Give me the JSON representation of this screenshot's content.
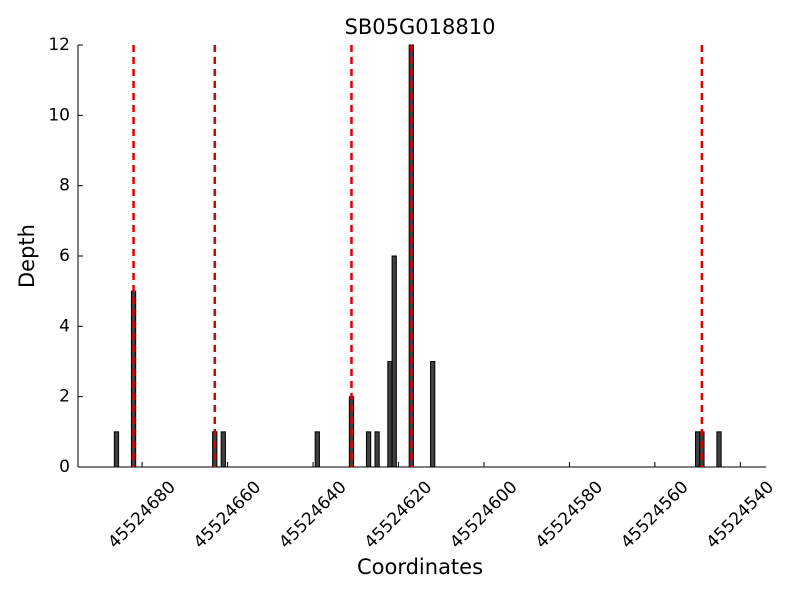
{
  "chart_data": {
    "type": "bar",
    "title": "SB05G018810",
    "xlabel": "Coordinates",
    "ylabel": "Depth",
    "x": [
      45524686,
      45524682,
      45524663,
      45524661,
      45524639,
      45524631,
      45524627,
      45524625,
      45524622,
      45524621,
      45524617,
      45524612,
      45524550,
      45524549,
      45524545
    ],
    "values": [
      1,
      5,
      1,
      1,
      1,
      2,
      1,
      1,
      3,
      6,
      12,
      3,
      1,
      1,
      1
    ],
    "color": "#404040",
    "xlim": [
      45524695,
      45524534
    ],
    "xticks": [
      45524680,
      45524660,
      45524640,
      45524620,
      45524600,
      45524580,
      45524560,
      45524540
    ],
    "ylim": [
      0,
      12
    ],
    "yticks": [
      0,
      2,
      4,
      6,
      8,
      10,
      12
    ],
    "vlines": [
      45524682,
      45524663,
      45524631,
      45524617,
      45524549
    ],
    "vline_color": "#e00000"
  }
}
